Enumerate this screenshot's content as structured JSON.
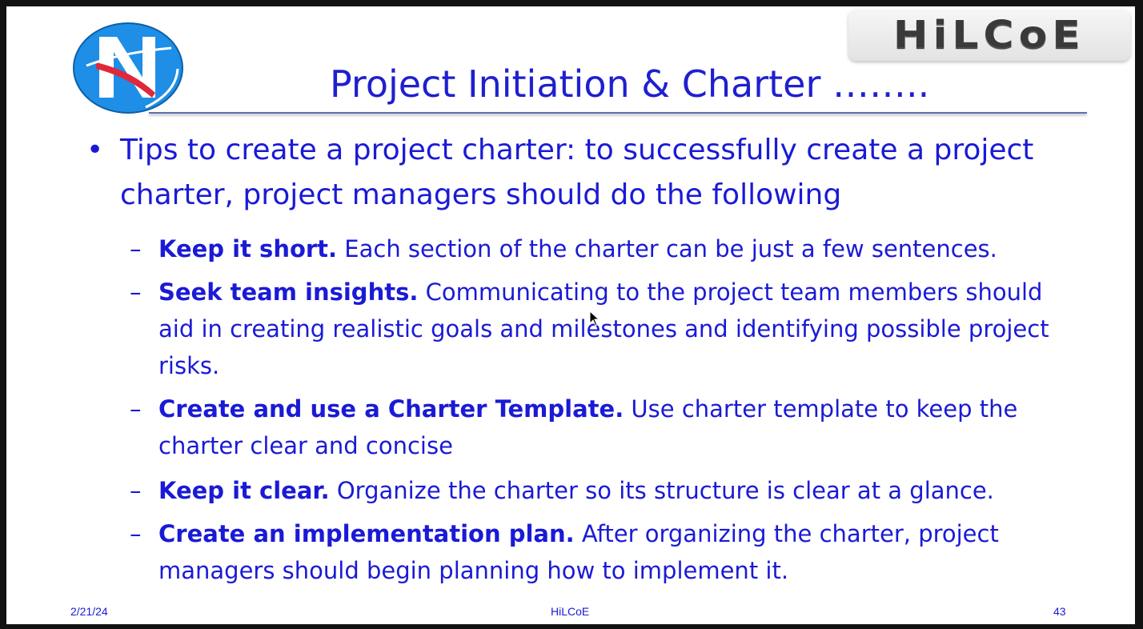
{
  "header": {
    "title": "Project Initiation & Charter ……..",
    "brand": "HiLCoE"
  },
  "content": {
    "bullet": "Tips to create a project charter: to successfully create a project charter, project managers should do the following",
    "tips": [
      {
        "bold": "Keep it short.",
        "text": " Each section of the charter can be just a few sentences."
      },
      {
        "bold": "Seek team insights.",
        "text": " Communicating to the project team members should aid in creating realistic goals and milestones and identifying possible project risks."
      },
      {
        "bold": "Create and use a Charter Template.",
        "text": " Use charter template to keep the charter clear and concise"
      },
      {
        "bold": "Keep it clear.",
        "text": " Organize the charter so its structure is clear at a glance."
      },
      {
        "bold": "Create an implementation plan.",
        "text": " After organizing the charter, project managers should begin planning how to implement it."
      }
    ]
  },
  "footer": {
    "date": "2/21/24",
    "center": "HiLCoE",
    "page": "43"
  },
  "colors": {
    "text": "#1a1ad6",
    "title": "#1f1fd0",
    "logo_blue": "#1e8ee6",
    "logo_red": "#e0283a"
  }
}
